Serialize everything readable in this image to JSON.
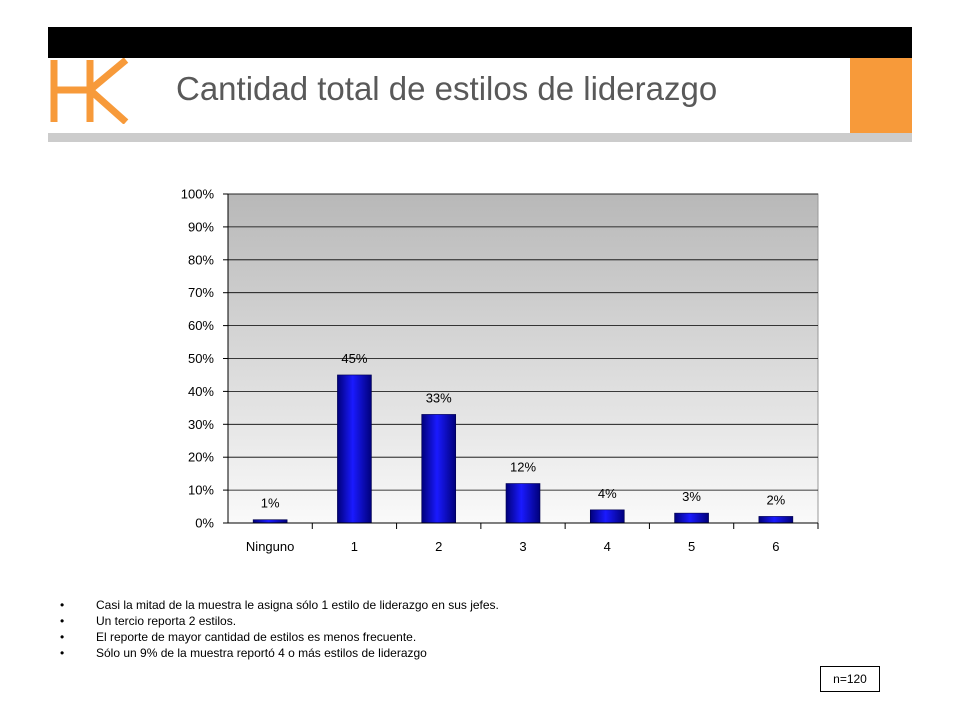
{
  "header": {
    "logo_text": "HK",
    "title": "Cantidad total de estilos de liderazgo",
    "accent_color": "#F79A3A"
  },
  "chart_data": {
    "type": "bar",
    "categories": [
      "Ninguno",
      "1",
      "2",
      "3",
      "4",
      "5",
      "6"
    ],
    "values": [
      1,
      45,
      33,
      12,
      4,
      3,
      2
    ],
    "data_labels": [
      "1%",
      "45%",
      "33%",
      "12%",
      "4%",
      "3%",
      "2%"
    ],
    "ylim": [
      0,
      100
    ],
    "yticks": [
      "0%",
      "10%",
      "20%",
      "30%",
      "40%",
      "50%",
      "60%",
      "70%",
      "80%",
      "90%",
      "100%"
    ],
    "grid": true,
    "bar_color": "#0000CC",
    "title": "",
    "xlabel": "",
    "ylabel": ""
  },
  "notes": {
    "bullets": [
      "Casi la mitad de la muestra le asigna sólo 1 estilo de liderazgo en sus jefes.",
      "Un tercio reporta 2 estilos.",
      "El reporte de mayor cantidad de estilos es menos frecuente.",
      "Sólo un 9% de la muestra reportó 4 o más estilos de liderazgo"
    ],
    "sample_size": "n=120"
  }
}
